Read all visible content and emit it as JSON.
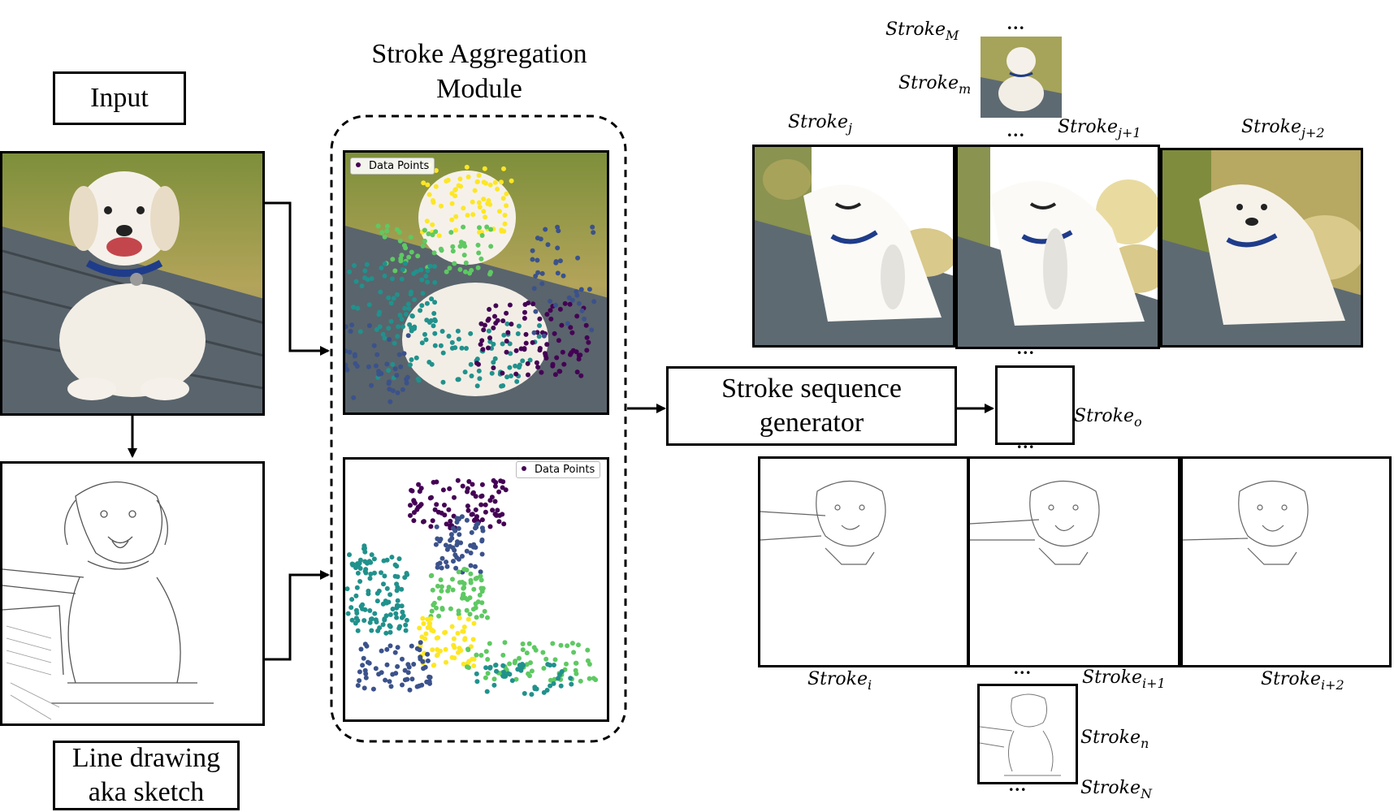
{
  "labels": {
    "input": "Input",
    "sketch_line1": "Line drawing",
    "sketch_line2": "aka sketch",
    "module_line1": "Stroke Aggregation",
    "module_line2": "Module",
    "generator_line1": "Stroke sequence",
    "generator_line2": "generator",
    "legend": "Data Points",
    "ellipsis": "..."
  },
  "strokes": {
    "M": {
      "base": "Stroke",
      "sub": "M"
    },
    "m": {
      "base": "Stroke",
      "sub": "m"
    },
    "j": {
      "base": "Stroke",
      "sub": "j"
    },
    "j1": {
      "base": "Stroke",
      "sub": "j+1"
    },
    "j2": {
      "base": "Stroke",
      "sub": "j+2"
    },
    "o": {
      "base": "Stroke",
      "sub": "o"
    },
    "i": {
      "base": "Stroke",
      "sub": "i"
    },
    "i1": {
      "base": "Stroke",
      "sub": "i+1"
    },
    "i2": {
      "base": "Stroke",
      "sub": "i+2"
    },
    "n": {
      "base": "Stroke",
      "sub": "n"
    },
    "N": {
      "base": "Stroke",
      "sub": "N"
    }
  },
  "colors": {
    "viridis": [
      "#440154",
      "#3b528b",
      "#21918c",
      "#5ec962",
      "#fde725"
    ],
    "foliage": "#8c9a3c",
    "bench": "#5e6a72",
    "dog": "#f2eee6"
  }
}
